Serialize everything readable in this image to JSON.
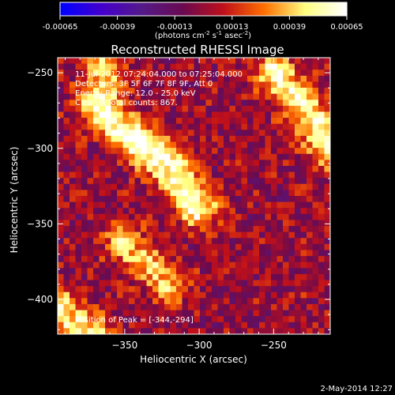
{
  "colorbar": {
    "ticks": [
      "-0.00065",
      "-0.00039",
      "-0.00013",
      "0.00013",
      "0.00039",
      "0.00065"
    ],
    "units_parts": [
      "(photons cm",
      "-2",
      " s",
      "-1",
      " asec",
      "-2",
      ")"
    ]
  },
  "annotations": [
    "11-Jul-2012 07:24:04.000 to 07:25:04.000",
    "Detectors: 3F 5F 6F 7F 8F 9F, Att 0",
    "Energy Range: 12.0 - 25.0 keV",
    "Clean    Total counts: 867.",
    "Position of Peak = [-344,-294]"
  ],
  "footer": {
    "date": "2-May-2014 12:27"
  },
  "chart_data": {
    "type": "heatmap",
    "title": "Reconstructed RHESSI Image",
    "xlabel": "Heliocentric X (arcsec)",
    "ylabel": "Heliocentric Y (arcsec)",
    "xlim": [
      -395,
      -212
    ],
    "ylim": [
      -423,
      -240
    ],
    "xticks": [
      -350,
      -300,
      -250
    ],
    "yticks": [
      -250,
      -300,
      -350,
      -400
    ],
    "colorbar_range": [
      -0.00065,
      0.00065
    ],
    "colormap": [
      "#0000ff",
      "#4400cc",
      "#551a88",
      "#6a0a50",
      "#c0101a",
      "#ff7000",
      "#ffff80",
      "#ffffff"
    ],
    "peak_position": [
      -344,
      -294
    ],
    "emission_ridges": [
      {
        "points": [
          [
            -370,
            -270
          ],
          [
            -344,
            -294
          ],
          [
            -318,
            -314
          ],
          [
            -300,
            -340
          ]
        ],
        "intensity": 0.0006
      },
      {
        "points": [
          [
            -250,
            -250
          ],
          [
            -228,
            -275
          ],
          [
            -212,
            -300
          ]
        ],
        "intensity": 0.00055
      },
      {
        "points": [
          [
            -352,
            -362
          ],
          [
            -335,
            -376
          ],
          [
            -320,
            -390
          ]
        ],
        "intensity": 0.0004
      },
      {
        "points": [
          [
            -395,
            -405
          ],
          [
            -385,
            -415
          ],
          [
            -372,
            -423
          ]
        ],
        "intensity": 0.0005
      },
      {
        "points": [
          [
            -368,
            -240
          ],
          [
            -360,
            -250
          ]
        ],
        "intensity": 0.00035
      }
    ]
  }
}
